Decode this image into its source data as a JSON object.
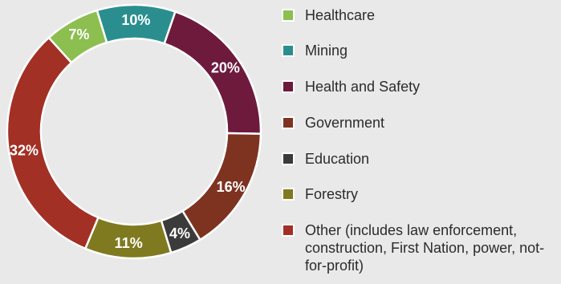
{
  "chart_data": {
    "type": "pie",
    "donut": true,
    "categories": [
      "Mining",
      "Health and Safety",
      "Government",
      "Education",
      "Forestry",
      "Other (includes law enforcement, construction, First Nation, power, not-for-profit)",
      "Healthcare"
    ],
    "values": [
      10,
      20,
      16,
      4,
      11,
      32,
      7
    ],
    "labels": [
      "10%",
      "20%",
      "16%",
      "4%",
      "11%",
      "32%",
      "7%"
    ],
    "colors": [
      "#2a8e8f",
      "#6e1a3d",
      "#7e3320",
      "#3b3b3b",
      "#7f7a20",
      "#a23025",
      "#8cbf4f"
    ],
    "legend_position": "right"
  },
  "legend": [
    {
      "label": "Healthcare",
      "color": "#8cbf4f"
    },
    {
      "label": "Mining",
      "color": "#2a8e8f"
    },
    {
      "label": "Health and Safety",
      "color": "#6e1a3d"
    },
    {
      "label": "Government",
      "color": "#7e3320"
    },
    {
      "label": "Education",
      "color": "#3b3b3b"
    },
    {
      "label": "Forestry",
      "color": "#7f7a20"
    },
    {
      "label": "Other (includes law enforcement, construction, First Nation, power, not-for-profit)",
      "color": "#a23025"
    }
  ],
  "background_color": "#e9e9ea"
}
